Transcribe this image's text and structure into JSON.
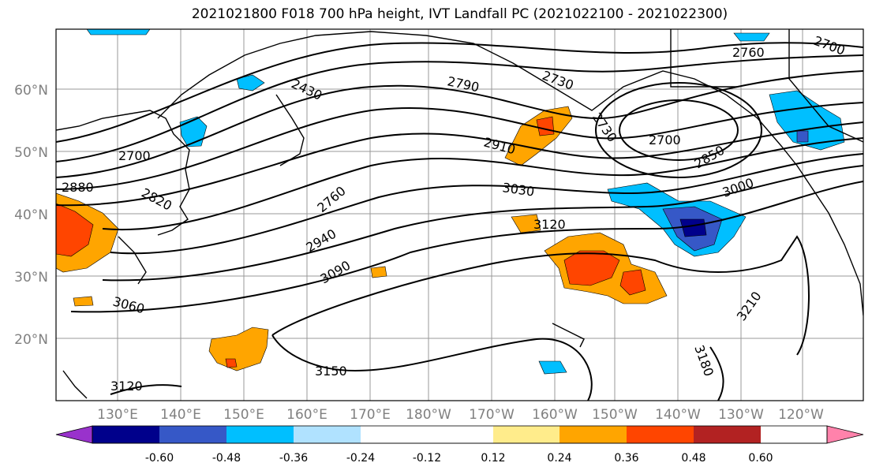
{
  "title": "2021021800 F018 700 hPa height, IVT Landfall PC (2021022100 - 2021022300)",
  "map": {
    "lat_labels": [
      "60°N",
      "50°N",
      "40°N",
      "30°N",
      "20°N"
    ],
    "lon_labels": [
      "130°E",
      "140°E",
      "150°E",
      "160°E",
      "170°E",
      "180°W",
      "170°W",
      "160°W",
      "150°W",
      "140°W",
      "130°W",
      "120°W"
    ],
    "contour_labels": [
      "2700",
      "2880",
      "2820",
      "2430",
      "2760",
      "2790",
      "2730",
      "2910",
      "2730",
      "2700",
      "2850",
      "2760",
      "2700",
      "3030",
      "2940",
      "3000",
      "3120",
      "3090",
      "3060",
      "3210",
      "3150",
      "3180",
      "3120"
    ]
  },
  "colorbar": {
    "colors": [
      "#9932cc",
      "#00008b",
      "#3658c7",
      "#00bfff",
      "#b0e2ff",
      "#ffffff",
      "#ffffff",
      "#ffec8b",
      "#ffa500",
      "#ff4500",
      "#b22222",
      "#ff82ab"
    ],
    "tick_labels": [
      "-0.60",
      "-0.48",
      "-0.36",
      "-0.24",
      "-0.12",
      "0.12",
      "0.24",
      "0.36",
      "0.48",
      "0.60"
    ]
  }
}
